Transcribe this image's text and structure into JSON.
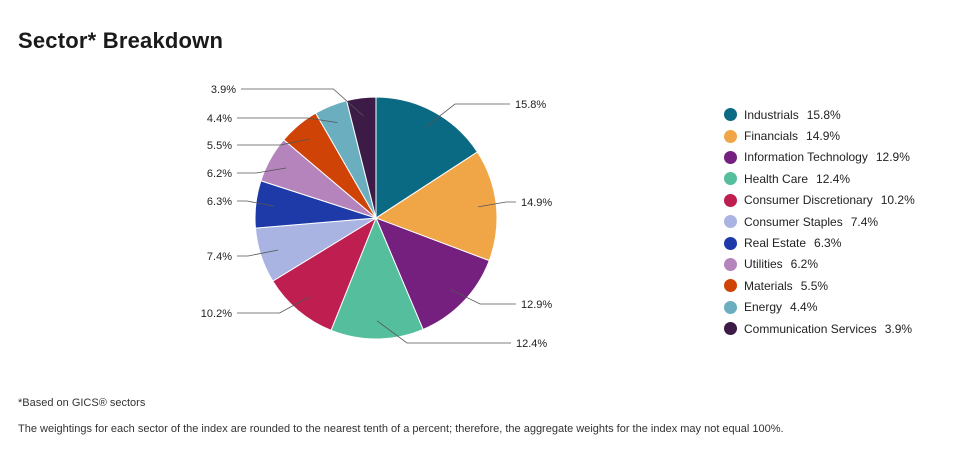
{
  "title": "Sector* Breakdown",
  "footnote1": "*Based on GICS® sectors",
  "footnote2": "The weightings for each sector of the index are rounded to the nearest tenth of a percent; therefore, the aggregate weights for the index may not equal 100%.",
  "chart_data": {
    "type": "pie",
    "title": "Sector* Breakdown",
    "legend_position": "right",
    "slices": [
      {
        "name": "Industrials",
        "label": "15.8%",
        "value": 15.8,
        "color": "#0b6a83"
      },
      {
        "name": "Financials",
        "label": "14.9%",
        "value": 14.9,
        "color": "#f0a647"
      },
      {
        "name": "Information Technology",
        "label": "12.9%",
        "value": 12.9,
        "color": "#751f7e"
      },
      {
        "name": "Health Care",
        "label": "12.4%",
        "value": 12.4,
        "color": "#55bf9d"
      },
      {
        "name": "Consumer Discretionary",
        "label": "10.2%",
        "value": 10.2,
        "color": "#be1e50"
      },
      {
        "name": "Consumer Staples",
        "label": "7.4%",
        "value": 7.4,
        "color": "#aab4e2"
      },
      {
        "name": "Real Estate",
        "label": "6.3%",
        "value": 6.3,
        "color": "#1d3aa8"
      },
      {
        "name": "Utilities",
        "label": "6.2%",
        "value": 6.2,
        "color": "#b584bd"
      },
      {
        "name": "Materials",
        "label": "5.5%",
        "value": 5.5,
        "color": "#cf4406"
      },
      {
        "name": "Energy",
        "label": "4.4%",
        "value": 4.4,
        "color": "#6aaebf"
      },
      {
        "name": "Communication Services",
        "label": "3.9%",
        "value": 3.9,
        "color": "#3d1b47"
      }
    ]
  }
}
